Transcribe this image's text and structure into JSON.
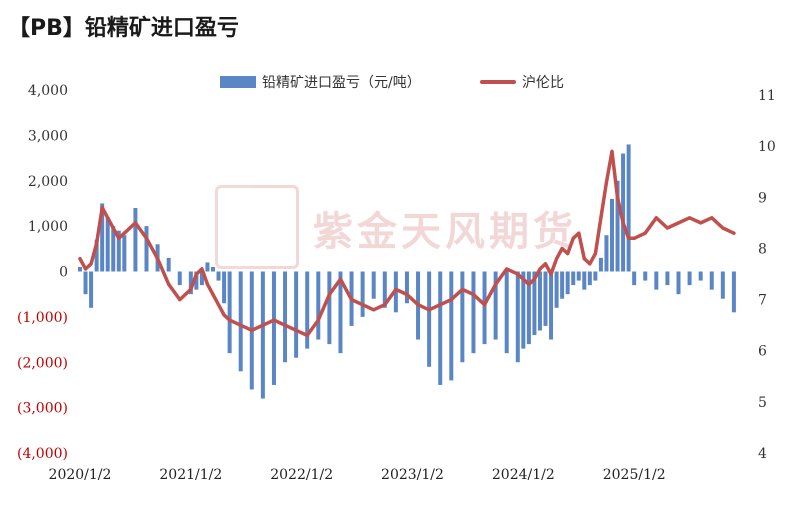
{
  "title": "【PB】铅精矿进口盈亏",
  "watermark": {
    "text": "紫金天风期货"
  },
  "chart_data": {
    "type": "bar",
    "title": "【PB】铅精矿进口盈亏",
    "legend": {
      "placement": "top"
    },
    "grid": false,
    "x_ticks": [
      "2020/1/2",
      "2021/1/2",
      "2022/1/2",
      "2023/1/2",
      "2024/1/2",
      "2025/1/2"
    ],
    "y_left": {
      "range": [
        -4000,
        4000
      ],
      "ticks": [
        {
          "value": 4000,
          "label": "4,000",
          "color": "#333333"
        },
        {
          "value": 3000,
          "label": "3,000",
          "color": "#333333"
        },
        {
          "value": 2000,
          "label": "2,000",
          "color": "#333333"
        },
        {
          "value": 1000,
          "label": "1,000",
          "color": "#333333"
        },
        {
          "value": 0,
          "label": "0",
          "color": "#333333"
        },
        {
          "value": -1000,
          "label": "(1,000)",
          "color": "#c00000"
        },
        {
          "value": -2000,
          "label": "(2,000)",
          "color": "#c00000"
        },
        {
          "value": -3000,
          "label": "(3,000)",
          "color": "#c00000"
        },
        {
          "value": -4000,
          "label": "(4,000)",
          "color": "#c00000"
        }
      ]
    },
    "y_right": {
      "range": [
        4,
        11.1
      ],
      "ticks": [
        {
          "value": 11,
          "label": "11"
        },
        {
          "value": 10,
          "label": "10"
        },
        {
          "value": 9,
          "label": "9"
        },
        {
          "value": 8,
          "label": "8"
        },
        {
          "value": 7,
          "label": "7"
        },
        {
          "value": 6,
          "label": "6"
        },
        {
          "value": 5,
          "label": "5"
        },
        {
          "value": 4,
          "label": "4"
        }
      ]
    },
    "series": [
      {
        "name": "铅精矿进口盈亏（元/吨）",
        "type": "bar",
        "axis": "left",
        "color": "#5b86c5",
        "x": [
          2020.0,
          2020.05,
          2020.1,
          2020.15,
          2020.2,
          2020.25,
          2020.3,
          2020.35,
          2020.4,
          2020.5,
          2020.6,
          2020.7,
          2020.8,
          2020.9,
          2021.0,
          2021.05,
          2021.1,
          2021.15,
          2021.2,
          2021.25,
          2021.3,
          2021.35,
          2021.45,
          2021.55,
          2021.65,
          2021.75,
          2021.85,
          2021.95,
          2022.05,
          2022.15,
          2022.25,
          2022.35,
          2022.45,
          2022.55,
          2022.65,
          2022.75,
          2022.85,
          2022.95,
          2023.05,
          2023.15,
          2023.25,
          2023.35,
          2023.45,
          2023.55,
          2023.65,
          2023.75,
          2023.85,
          2023.95,
          2024.0,
          2024.05,
          2024.1,
          2024.15,
          2024.2,
          2024.25,
          2024.3,
          2024.35,
          2024.4,
          2024.45,
          2024.5,
          2024.55,
          2024.6,
          2024.65,
          2024.7,
          2024.75,
          2024.8,
          2024.85,
          2024.9,
          2024.95,
          2025.0,
          2025.1,
          2025.2,
          2025.3,
          2025.4,
          2025.5,
          2025.6,
          2025.7,
          2025.8,
          2025.9
        ],
        "values": [
          100,
          -500,
          -800,
          700,
          1500,
          1200,
          1000,
          900,
          800,
          1400,
          1000,
          600,
          300,
          -300,
          -500,
          -400,
          -300,
          200,
          100,
          -200,
          -700,
          -1800,
          -2200,
          -2600,
          -2800,
          -2500,
          -2000,
          -1900,
          -1700,
          -1500,
          -1600,
          -1800,
          -1200,
          -1000,
          -600,
          -800,
          -900,
          -700,
          -1500,
          -2100,
          -2500,
          -2400,
          -2000,
          -1800,
          -1600,
          -1500,
          -1800,
          -2000,
          -1700,
          -1600,
          -1400,
          -1300,
          -1200,
          -1500,
          -800,
          -600,
          -500,
          -300,
          -200,
          -400,
          -300,
          -200,
          300,
          800,
          1600,
          2000,
          2600,
          2800,
          -300,
          -200,
          -400,
          -300,
          -500,
          -300,
          -200,
          -400,
          -600,
          -900
        ]
      },
      {
        "name": "沪伦比",
        "type": "line",
        "axis": "right",
        "color": "#c0504d",
        "x": [
          2020.0,
          2020.05,
          2020.1,
          2020.15,
          2020.2,
          2020.25,
          2020.3,
          2020.35,
          2020.4,
          2020.5,
          2020.6,
          2020.7,
          2020.8,
          2020.9,
          2021.0,
          2021.05,
          2021.1,
          2021.15,
          2021.2,
          2021.25,
          2021.3,
          2021.35,
          2021.45,
          2021.55,
          2021.65,
          2021.75,
          2021.85,
          2021.95,
          2022.05,
          2022.15,
          2022.25,
          2022.35,
          2022.45,
          2022.55,
          2022.65,
          2022.75,
          2022.85,
          2022.95,
          2023.05,
          2023.15,
          2023.25,
          2023.35,
          2023.45,
          2023.55,
          2023.65,
          2023.75,
          2023.85,
          2023.95,
          2024.0,
          2024.05,
          2024.1,
          2024.15,
          2024.2,
          2024.25,
          2024.3,
          2024.35,
          2024.4,
          2024.45,
          2024.5,
          2024.55,
          2024.6,
          2024.65,
          2024.7,
          2024.75,
          2024.8,
          2024.85,
          2024.9,
          2024.95,
          2025.0,
          2025.1,
          2025.2,
          2025.3,
          2025.4,
          2025.5,
          2025.6,
          2025.7,
          2025.8,
          2025.9
        ],
        "values": [
          7.8,
          7.6,
          7.7,
          8.1,
          8.8,
          8.6,
          8.4,
          8.2,
          8.3,
          8.5,
          8.2,
          7.8,
          7.3,
          7.0,
          7.2,
          7.5,
          7.6,
          7.3,
          7.1,
          6.9,
          6.7,
          6.6,
          6.5,
          6.4,
          6.5,
          6.6,
          6.5,
          6.4,
          6.3,
          6.6,
          7.1,
          7.4,
          7.0,
          6.9,
          6.8,
          6.9,
          7.2,
          7.1,
          6.9,
          6.8,
          6.9,
          7.0,
          7.2,
          7.1,
          6.9,
          7.3,
          7.6,
          7.5,
          7.4,
          7.3,
          7.4,
          7.6,
          7.7,
          7.5,
          7.8,
          8.0,
          7.9,
          8.2,
          8.3,
          7.8,
          7.7,
          7.9,
          8.6,
          9.3,
          9.9,
          9.0,
          8.5,
          8.2,
          8.2,
          8.3,
          8.6,
          8.4,
          8.5,
          8.6,
          8.5,
          8.6,
          8.4,
          8.3
        ]
      }
    ]
  }
}
